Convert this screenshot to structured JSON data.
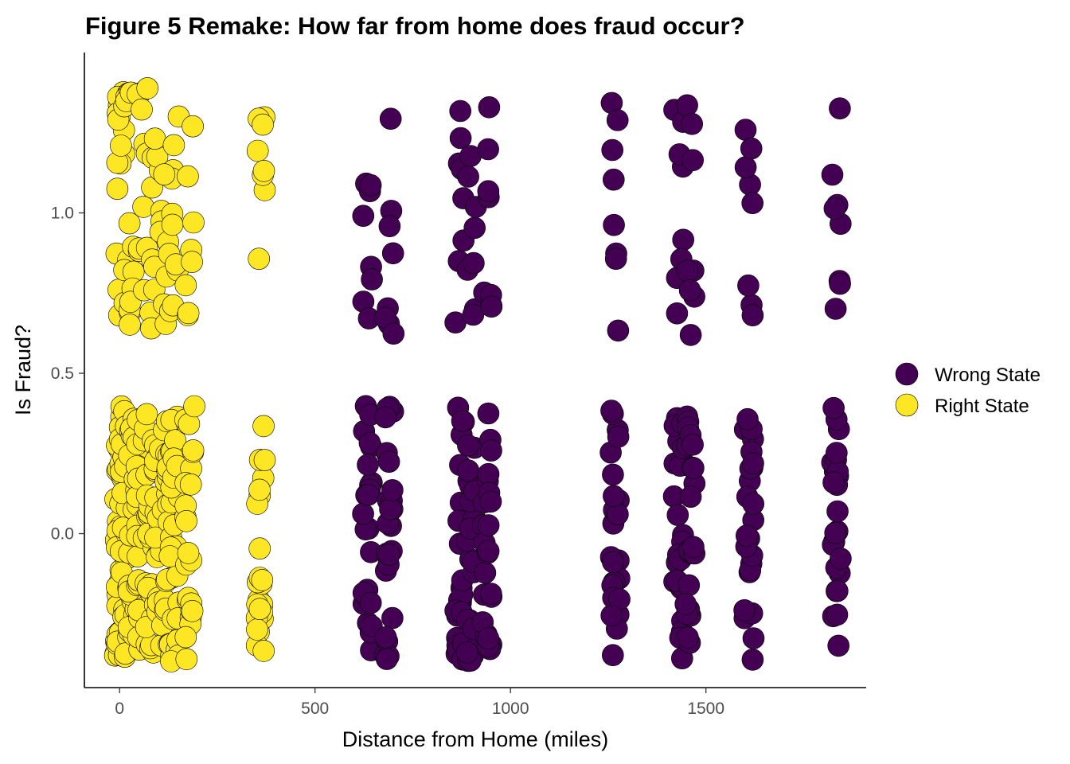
{
  "chart_data": {
    "type": "scatter",
    "title": "Figure 5 Remake: How far from home does fraud occur?",
    "xlabel": "Distance from Home (miles)",
    "ylabel": "Is Fraud?",
    "xlim": [
      -90,
      1910
    ],
    "ylim": [
      -0.48,
      1.5
    ],
    "x_ticks": [
      0,
      500,
      1000,
      1500
    ],
    "x_tick_labels": [
      "0",
      "500",
      "1000",
      "1500"
    ],
    "y_ticks": [
      0.0,
      0.5,
      1.0
    ],
    "y_tick_labels": [
      "0.0",
      "0.5",
      "1.0"
    ],
    "jitter_height": 0.4,
    "grid": false,
    "legend_position": "right",
    "legend": [
      {
        "label": "Wrong State",
        "color": "#440154"
      },
      {
        "label": "Right State",
        "color": "#FDE725"
      }
    ],
    "series": [
      {
        "name": "Wrong State",
        "color": "#440154",
        "x_values": [
          635,
          690,
          870,
          900,
          940,
          1268,
          1430,
          1460,
          1610,
          1835
        ],
        "fraud_values": [
          0,
          1
        ]
      },
      {
        "name": "Right State",
        "color": "#FDE725",
        "x_values": [
          0,
          5,
          15,
          35,
          55,
          80,
          100,
          125,
          140,
          180,
          360
        ],
        "fraud_values": [
          0,
          1
        ]
      }
    ]
  }
}
